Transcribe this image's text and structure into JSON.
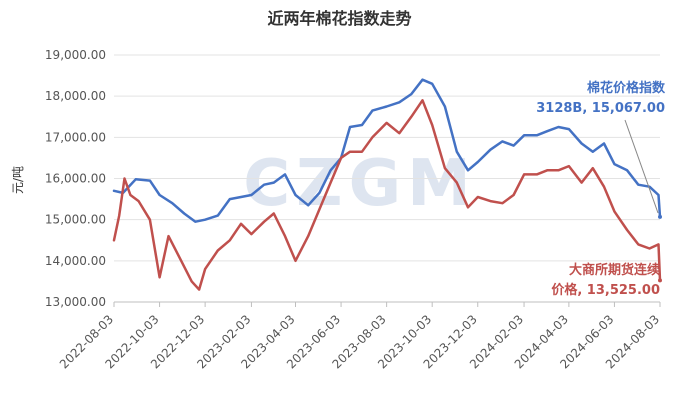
{
  "chart_data": {
    "type": "line",
    "title": "近两年棉花指数走势",
    "ylabel": "元/吨",
    "xlabel": "",
    "ylim": [
      13000,
      19000
    ],
    "yticks": [
      "13,000.00",
      "14,000.00",
      "15,000.00",
      "16,000.00",
      "17,000.00",
      "18,000.00",
      "19,000.00"
    ],
    "xticks": [
      "2022-08-03",
      "2022-10-03",
      "2022-12-03",
      "2023-02-03",
      "2023-04-03",
      "2023-06-03",
      "2023-08-03",
      "2023-10-03",
      "2023-12-03",
      "2024-02-03",
      "2024-04-03",
      "2024-06-03",
      "2024-08-03"
    ],
    "grid": "horizontal",
    "watermark": "CZGM",
    "series": [
      {
        "name": "棉花价格指数3128B",
        "color": "#4472c4",
        "end_label": [
          "棉花价格指数",
          "3128B, 15,067.00"
        ],
        "x": [
          "2022-08-03",
          "2022-08-15",
          "2022-09-01",
          "2022-09-20",
          "2022-10-03",
          "2022-10-20",
          "2022-11-05",
          "2022-11-20",
          "2022-12-03",
          "2022-12-20",
          "2023-01-05",
          "2023-01-20",
          "2023-02-03",
          "2023-02-20",
          "2023-03-05",
          "2023-03-20",
          "2023-04-03",
          "2023-04-20",
          "2023-05-05",
          "2023-05-20",
          "2023-06-03",
          "2023-06-15",
          "2023-07-01",
          "2023-07-15",
          "2023-08-03",
          "2023-08-20",
          "2023-09-05",
          "2023-09-20",
          "2023-10-03",
          "2023-10-20",
          "2023-11-05",
          "2023-11-20",
          "2023-12-03",
          "2023-12-20",
          "2024-01-05",
          "2024-01-20",
          "2024-02-03",
          "2024-02-20",
          "2024-03-05",
          "2024-03-20",
          "2024-04-03",
          "2024-04-20",
          "2024-05-05",
          "2024-05-20",
          "2024-06-03",
          "2024-06-20",
          "2024-07-05",
          "2024-07-20",
          "2024-08-01",
          "2024-08-03"
        ],
        "values": [
          15700,
          15650,
          15980,
          15950,
          15600,
          15400,
          15150,
          14950,
          15000,
          15100,
          15500,
          15550,
          15600,
          15850,
          15900,
          16100,
          15600,
          15350,
          15650,
          16200,
          16500,
          17250,
          17300,
          17650,
          17750,
          17850,
          18050,
          18400,
          18300,
          17750,
          16650,
          16200,
          16400,
          16700,
          16900,
          16800,
          17050,
          17050,
          17150,
          17250,
          17200,
          16850,
          16650,
          16850,
          16350,
          16200,
          15850,
          15800,
          15600,
          15067
        ]
      },
      {
        "name": "大商所期货连续价格",
        "color": "#c0504d",
        "end_label": [
          "大商所期货连续",
          "价格, 13,525.00"
        ],
        "x": [
          "2022-08-03",
          "2022-08-10",
          "2022-08-17",
          "2022-08-25",
          "2022-09-05",
          "2022-09-20",
          "2022-10-03",
          "2022-10-15",
          "2022-11-01",
          "2022-11-15",
          "2022-11-25",
          "2022-12-03",
          "2022-12-20",
          "2023-01-05",
          "2023-01-20",
          "2023-02-03",
          "2023-02-20",
          "2023-03-05",
          "2023-03-20",
          "2023-04-03",
          "2023-04-20",
          "2023-05-05",
          "2023-05-20",
          "2023-06-03",
          "2023-06-15",
          "2023-07-01",
          "2023-07-15",
          "2023-08-03",
          "2023-08-20",
          "2023-09-05",
          "2023-09-20",
          "2023-10-03",
          "2023-10-20",
          "2023-11-05",
          "2023-11-20",
          "2023-12-03",
          "2023-12-20",
          "2024-01-05",
          "2024-01-20",
          "2024-02-03",
          "2024-02-20",
          "2024-03-05",
          "2024-03-20",
          "2024-04-03",
          "2024-04-20",
          "2024-05-05",
          "2024-05-20",
          "2024-06-03",
          "2024-06-20",
          "2024-07-05",
          "2024-07-20",
          "2024-08-01",
          "2024-08-03"
        ],
        "values": [
          14500,
          15100,
          16000,
          15600,
          15450,
          15000,
          13600,
          14600,
          14000,
          13500,
          13300,
          13800,
          14250,
          14500,
          14900,
          14650,
          14950,
          15150,
          14600,
          14000,
          14600,
          15250,
          15900,
          16500,
          16650,
          16650,
          17000,
          17350,
          17100,
          17500,
          17900,
          17300,
          16250,
          15900,
          15300,
          15550,
          15450,
          15400,
          15600,
          16100,
          16100,
          16200,
          16200,
          16300,
          15900,
          16250,
          15800,
          15200,
          14750,
          14400,
          14300,
          14400,
          13525
        ]
      }
    ]
  }
}
